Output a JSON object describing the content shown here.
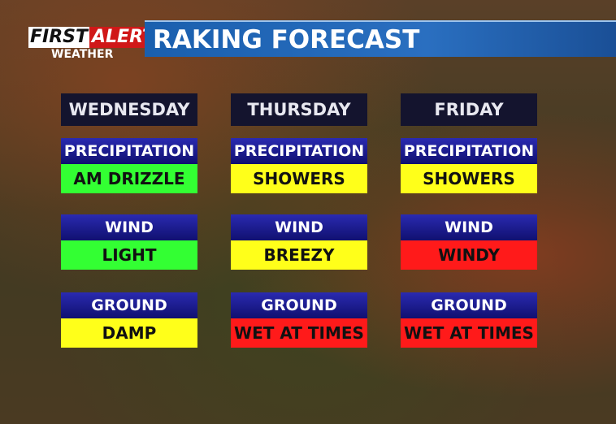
{
  "brand": {
    "first": "FIRST",
    "alert": "ALERT",
    "weather": "WEATHER"
  },
  "header": {
    "title": "RAKING FORECAST"
  },
  "days": [
    {
      "name": "WEDNESDAY",
      "rows": [
        {
          "label": "PRECIPITATION",
          "value": "AM DRIZZLE",
          "color": "#33ff33"
        },
        {
          "label": "WIND",
          "value": "LIGHT",
          "color": "#33ff33"
        },
        {
          "label": "GROUND",
          "value": "DAMP",
          "color": "#ffff1a"
        }
      ]
    },
    {
      "name": "THURSDAY",
      "rows": [
        {
          "label": "PRECIPITATION",
          "value": "SHOWERS",
          "color": "#ffff1a"
        },
        {
          "label": "WIND",
          "value": "BREEZY",
          "color": "#ffff1a"
        },
        {
          "label": "GROUND",
          "value": "WET AT TIMES",
          "color": "#ff1a1a"
        }
      ]
    },
    {
      "name": "FRIDAY",
      "rows": [
        {
          "label": "PRECIPITATION",
          "value": "SHOWERS",
          "color": "#ffff1a"
        },
        {
          "label": "WIND",
          "value": "WINDY",
          "color": "#ff1a1a"
        },
        {
          "label": "GROUND",
          "value": "WET AT TIMES",
          "color": "#ff1a1a"
        }
      ]
    }
  ]
}
